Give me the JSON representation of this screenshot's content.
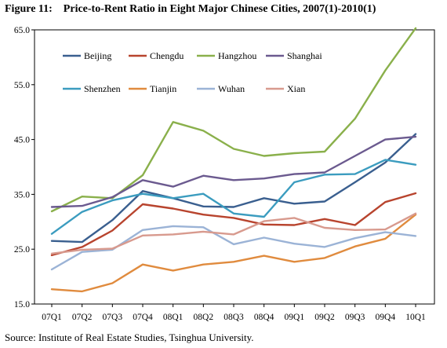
{
  "figure": {
    "number": "Figure 11:",
    "title": "Price-to-Rent Ratio in Eight Major Chinese Cities, 2007(1)-2010(1)",
    "source": "Source: Institute of Real Estate Studies, Tsinghua University."
  },
  "chart_data": {
    "type": "line",
    "title": "Price-to-Rent Ratio in Eight Major Chinese Cities, 2007(1)-2010(1)",
    "xlabel": "",
    "ylabel": "",
    "ylim": [
      15,
      65
    ],
    "yticks": [
      "15.0",
      "25.0",
      "35.0",
      "45.0",
      "55.0",
      "65.0"
    ],
    "grid": false,
    "legend_position": "top, inside plot",
    "categories": [
      "07Q1",
      "07Q2",
      "07Q3",
      "07Q4",
      "08Q1",
      "08Q2",
      "08Q3",
      "08Q4",
      "09Q1",
      "09Q2",
      "09Q3",
      "09Q4",
      "10Q1"
    ],
    "series": [
      {
        "name": "Beijing",
        "color": "#3a5f8f",
        "values": [
          26.5,
          26.3,
          30.3,
          35.6,
          34.3,
          32.8,
          32.7,
          34.3,
          33.3,
          33.7,
          37.2,
          40.8,
          46.0
        ]
      },
      {
        "name": "Chengdu",
        "color": "#b8442e",
        "values": [
          23.9,
          25.4,
          28.4,
          33.2,
          32.4,
          31.3,
          30.7,
          29.5,
          29.4,
          30.5,
          29.4,
          33.6,
          35.2
        ]
      },
      {
        "name": "Hangzhou",
        "color": "#8ab04b",
        "values": [
          31.9,
          34.6,
          34.3,
          38.5,
          48.2,
          46.6,
          43.3,
          42.0,
          42.5,
          42.8,
          48.8,
          57.6,
          65.3
        ]
      },
      {
        "name": "Shanghai",
        "color": "#6b5a8f",
        "values": [
          32.7,
          32.9,
          34.5,
          37.6,
          36.4,
          38.4,
          37.6,
          37.9,
          38.7,
          39.0,
          42.0,
          45.0,
          45.5
        ]
      },
      {
        "name": "Shenzhen",
        "color": "#3b9cbf",
        "values": [
          27.8,
          31.8,
          33.9,
          35.1,
          34.3,
          35.1,
          31.5,
          30.9,
          37.2,
          38.6,
          38.7,
          41.3,
          40.4
        ]
      },
      {
        "name": "Tianjin",
        "color": "#e08b3e",
        "values": [
          17.7,
          17.3,
          18.8,
          22.2,
          21.1,
          22.2,
          22.7,
          23.8,
          22.7,
          23.4,
          25.5,
          26.9,
          31.3
        ]
      },
      {
        "name": "Wuhan",
        "color": "#9bb3d6",
        "values": [
          21.3,
          24.5,
          24.9,
          28.5,
          29.2,
          29.0,
          25.9,
          27.1,
          26.0,
          25.4,
          27.0,
          28.1,
          27.4
        ]
      },
      {
        "name": "Xian",
        "color": "#d89a8e",
        "values": [
          24.2,
          24.9,
          25.1,
          27.5,
          27.7,
          28.2,
          27.7,
          30.1,
          30.7,
          28.9,
          28.5,
          28.6,
          31.5
        ]
      }
    ]
  }
}
